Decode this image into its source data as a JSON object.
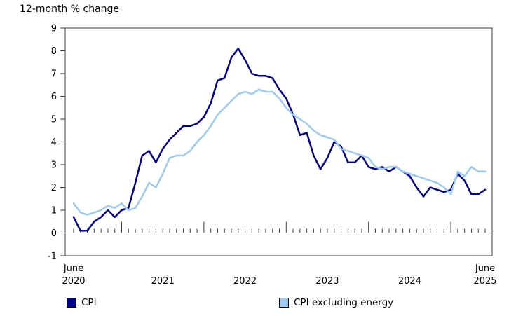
{
  "title": "12-month % change",
  "chart_data": {
    "type": "line",
    "title": "12-month % change",
    "frequency": "monthly",
    "x_start": "June 2020",
    "x_end": "June 2025",
    "ylim": [
      -1,
      9
    ],
    "yticks": [
      -1,
      0,
      1,
      2,
      3,
      4,
      5,
      6,
      7,
      8,
      9
    ],
    "grid": false,
    "legend_position": "bottom",
    "x_axis_labels": [
      {
        "top": "June",
        "bottom": "2020",
        "month_index": 0
      },
      {
        "top": "",
        "bottom": "2021",
        "month_index": 13
      },
      {
        "top": "",
        "bottom": "2022",
        "month_index": 25
      },
      {
        "top": "",
        "bottom": "2023",
        "month_index": 37
      },
      {
        "top": "",
        "bottom": "2024",
        "month_index": 49
      },
      {
        "top": "June",
        "bottom": "2025",
        "month_index": 60
      }
    ],
    "year_tick_month_indices": [
      7,
      19,
      31,
      43,
      55
    ],
    "series": [
      {
        "name": "CPI",
        "color": "#00008B",
        "values": [
          0.7,
          0.1,
          0.1,
          0.5,
          0.7,
          1.0,
          0.7,
          1.0,
          1.1,
          2.2,
          3.4,
          3.6,
          3.1,
          3.7,
          4.1,
          4.4,
          4.7,
          4.7,
          4.8,
          5.1,
          5.7,
          6.7,
          6.8,
          7.7,
          8.1,
          7.6,
          7.0,
          6.9,
          6.9,
          6.8,
          6.3,
          5.9,
          5.2,
          4.3,
          4.4,
          3.4,
          2.8,
          3.3,
          4.0,
          3.8,
          3.1,
          3.1,
          3.4,
          2.9,
          2.8,
          2.9,
          2.7,
          2.9,
          2.7,
          2.5,
          2.0,
          1.6,
          2.0,
          1.9,
          1.8,
          1.9,
          2.6,
          2.3,
          1.7,
          1.7,
          1.9
        ]
      },
      {
        "name": "CPI excluding energy",
        "color": "#9CCAF2",
        "values": [
          1.3,
          0.9,
          0.8,
          0.9,
          1.0,
          1.2,
          1.1,
          1.3,
          1.0,
          1.1,
          1.6,
          2.2,
          2.0,
          2.6,
          3.3,
          3.4,
          3.4,
          3.6,
          4.0,
          4.3,
          4.7,
          5.2,
          5.5,
          5.8,
          6.1,
          6.2,
          6.1,
          6.3,
          6.2,
          6.2,
          5.9,
          5.5,
          5.2,
          5.0,
          4.8,
          4.5,
          4.3,
          4.2,
          4.1,
          3.7,
          3.6,
          3.5,
          3.4,
          3.3,
          2.9,
          2.8,
          2.9,
          2.9,
          2.7,
          2.6,
          2.5,
          2.4,
          2.3,
          2.2,
          2.0,
          1.7,
          2.7,
          2.5,
          2.9,
          2.7,
          2.7
        ]
      }
    ]
  },
  "legend": {
    "items": [
      {
        "label": "CPI",
        "color": "#00008B"
      },
      {
        "label": "CPI excluding energy",
        "color": "#9CCAF2"
      }
    ]
  }
}
